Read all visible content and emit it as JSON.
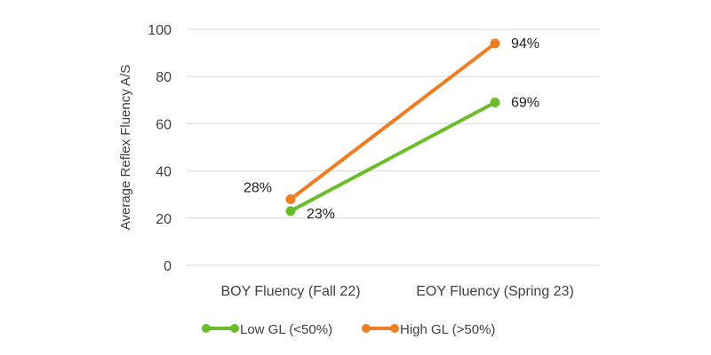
{
  "chart_data": {
    "type": "line",
    "title": "",
    "xlabel": "",
    "ylabel": "Average Reflex Fluency A/S",
    "categories": [
      "BOY Fluency (Fall 22)",
      "EOY Fluency (Spring 23)"
    ],
    "ylim": [
      0,
      100
    ],
    "yticks": [
      0,
      20,
      40,
      60,
      80,
      100
    ],
    "grid": true,
    "legend": "bottom",
    "series": [
      {
        "name": "Low GL (<50%)",
        "color": "#6cbd2c",
        "values": [
          23,
          69
        ],
        "labels": [
          "23%",
          "69%"
        ]
      },
      {
        "name": "High GL (>50%)",
        "color": "#ee7d23",
        "values": [
          28,
          94
        ],
        "labels": [
          "28%",
          "94%"
        ]
      }
    ]
  }
}
